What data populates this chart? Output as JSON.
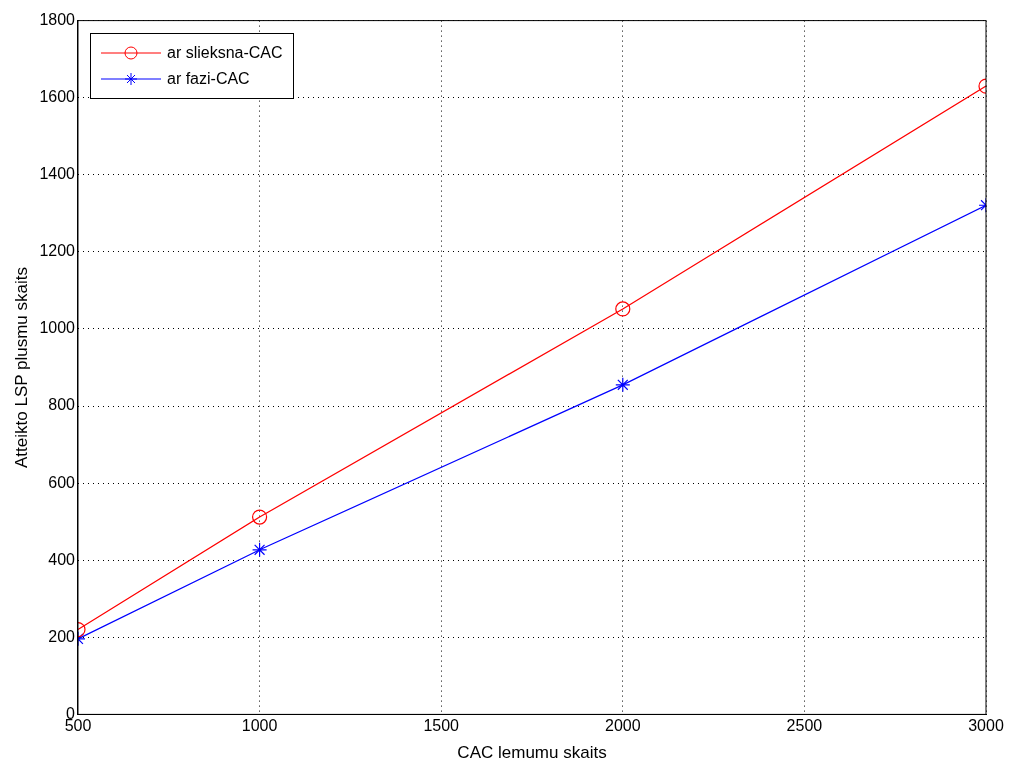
{
  "chart_data": {
    "type": "line",
    "xlabel": "CAC lemumu skaits",
    "ylabel": "Atteikto LSP plusmu skaits",
    "x": [
      500,
      1000,
      2000,
      3000
    ],
    "series": [
      {
        "name": "ar slieksna-CAC",
        "color": "#ff0000",
        "marker": "circle",
        "values": [
          220,
          512,
          1052,
          1630
        ]
      },
      {
        "name": "ar fazi-CAC",
        "color": "#0000ff",
        "marker": "cross",
        "values": [
          196,
          427,
          855,
          1321
        ]
      }
    ],
    "xlim": [
      500,
      3000
    ],
    "xticks": [
      500,
      1000,
      1500,
      2000,
      2500,
      3000
    ],
    "ylim": [
      0,
      1800
    ],
    "yticks": [
      0,
      200,
      400,
      600,
      800,
      1000,
      1200,
      1400,
      1600,
      1800
    ],
    "grid": true,
    "legend": "top left",
    "line_style": "solid"
  }
}
